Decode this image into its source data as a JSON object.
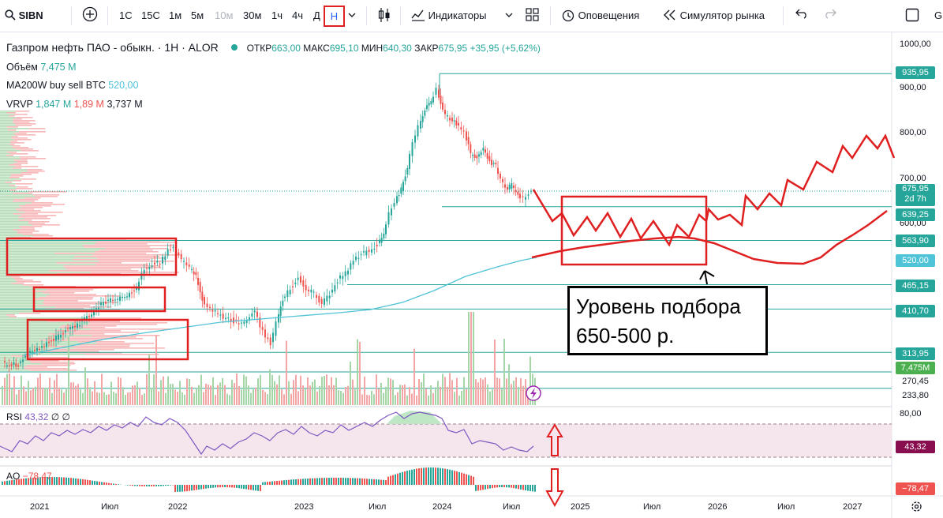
{
  "toolbar": {
    "symbol": "SIBN",
    "intervals": [
      "1С",
      "15С",
      "1м",
      "5м",
      "10м",
      "30м",
      "1ч",
      "4ч",
      "Д",
      "Н"
    ],
    "active_interval": "Н",
    "indicators_label": "Индикаторы",
    "alerts_label": "Оповещения",
    "simulator_label": "Симулятор рынка",
    "cut_label": "G"
  },
  "legend": {
    "title": "Газпром нефть ПАО - обыкн. · 1Н · ALOR",
    "open_label": "ОТКР",
    "open": "663,00",
    "high_label": "МАКС",
    "high": "695,10",
    "low_label": "МИН",
    "low": "640,30",
    "close_label": "ЗАКР",
    "close": "675,95",
    "change": "+35,95 (+5,62%)",
    "volume_label": "Объём",
    "volume": "7,475 M",
    "ma_label": "MA200W buy sell BTC",
    "ma_value": "520,00",
    "vrvp_label": "VRVP",
    "vrvp_1": "1,847 M",
    "vrvp_2": "1,89 M",
    "vrvp_3": "3,737 M",
    "rsi_label": "RSI",
    "rsi_value": "43,32",
    "rsi_extra": "∅ ∅",
    "ao_label": "AO",
    "ao_value": "−78,47"
  },
  "price_axis": [
    "1000,00",
    "900,00",
    "800,00",
    "700,00",
    "600,00"
  ],
  "price_labels": {
    "l935": "935,95",
    "l675": "675,95",
    "l675_sub": "2d 7h",
    "l639": "639,25",
    "l563": "563,90",
    "l520": "520,00",
    "l465": "465,15",
    "l410": "410,70",
    "l313": "313,95",
    "vol": "7,475M",
    "l270": "270,45",
    "l233": "233,80"
  },
  "rsi_axis": "80,00",
  "rsi_tag": "43,32",
  "ao_tag": "−78,47",
  "time_axis": [
    "2021",
    "Июл",
    "2022",
    "2023",
    "Июл",
    "2024",
    "Июл",
    "2025",
    "Июл",
    "2026",
    "Июл",
    "2027"
  ],
  "annotation": {
    "line1": "Уровень подбора",
    "line2": "650-500 р."
  },
  "colors": {
    "up": "#26a69a",
    "down": "#ef5350",
    "annotation": "#e02020",
    "level_line": "#26a69a",
    "ma": "#4fc3d7"
  },
  "chart_data": {
    "type": "line",
    "title": "Газпром нефть ПАО - обыкн. · 1Н · ALOR",
    "price_levels": [
      935.95,
      675.95,
      639.25,
      563.9,
      520.0,
      465.15,
      410.7,
      313.95,
      270.45,
      233.8
    ],
    "price_series": [
      {
        "x": "2020-12",
        "y": 240
      },
      {
        "x": "2021-03",
        "y": 330
      },
      {
        "x": "2021-06",
        "y": 380
      },
      {
        "x": "2021-09",
        "y": 470
      },
      {
        "x": "2021-11",
        "y": 560
      },
      {
        "x": "2022-01",
        "y": 540
      },
      {
        "x": "2022-03",
        "y": 310
      },
      {
        "x": "2022-07",
        "y": 355
      },
      {
        "x": "2022-10",
        "y": 400
      },
      {
        "x": "2023-01",
        "y": 480
      },
      {
        "x": "2023-04",
        "y": 430
      },
      {
        "x": "2023-07",
        "y": 560
      },
      {
        "x": "2023-09",
        "y": 690
      },
      {
        "x": "2023-12",
        "y": 880
      },
      {
        "x": "2024-01",
        "y": 935.95
      },
      {
        "x": "2024-03",
        "y": 860
      },
      {
        "x": "2024-05",
        "y": 770
      },
      {
        "x": "2024-07",
        "y": 700
      },
      {
        "x": "2024-08",
        "y": 675.95
      }
    ],
    "ylim": [
      200,
      1000
    ]
  }
}
